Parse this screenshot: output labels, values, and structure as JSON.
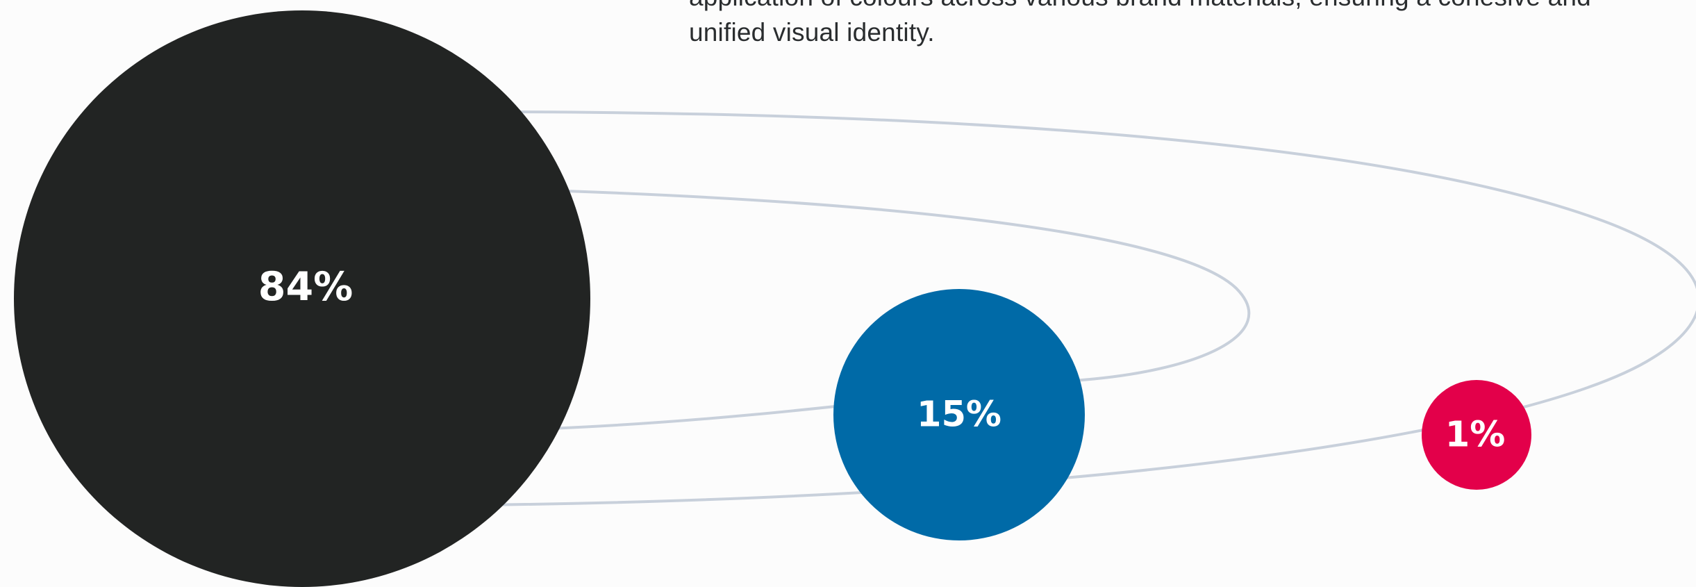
{
  "intro": {
    "line1": "application of colours across various brand materials, ensuring a cohesive and",
    "line2": "unified visual identity."
  },
  "colour_usage": [
    {
      "value": "84%",
      "share": 84,
      "color": "#222423"
    },
    {
      "value": "15%",
      "share": 15,
      "color": "#006aa7"
    },
    {
      "value": "1%",
      "share": 1,
      "color": "#e3004a"
    }
  ],
  "orbit_color": "#c8d0db"
}
